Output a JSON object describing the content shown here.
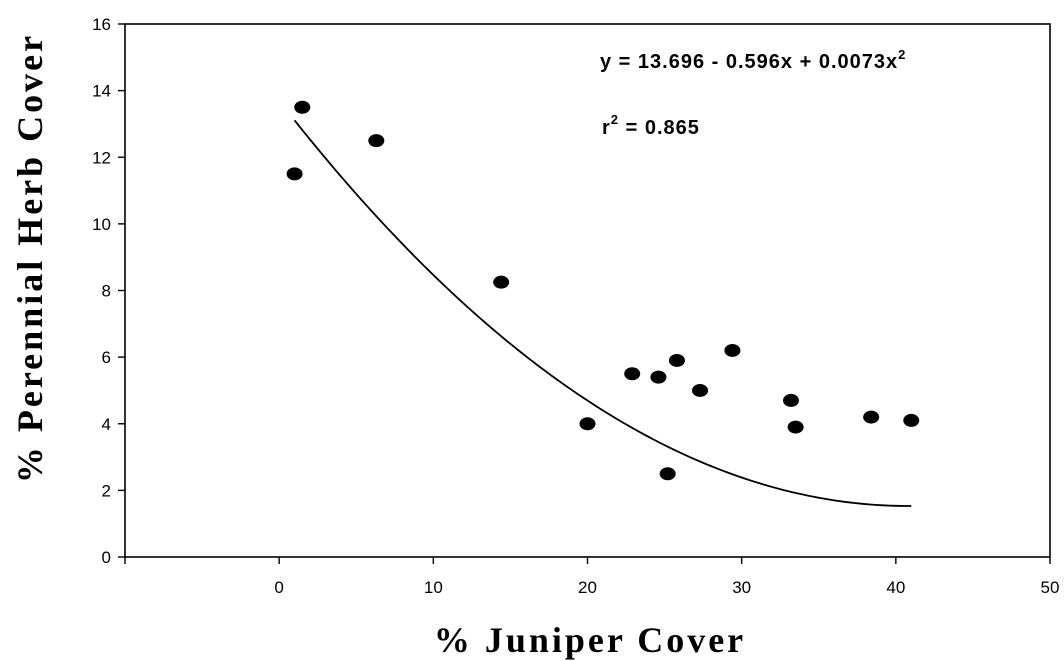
{
  "chart_data": {
    "type": "scatter",
    "xlabel": "% Juniper Cover",
    "ylabel": "% Perennial Herb Cover",
    "xlim": [
      -10,
      50
    ],
    "ylim": [
      0,
      16
    ],
    "xticks": [
      "0",
      "10",
      "20",
      "30",
      "40",
      "50"
    ],
    "yticks": [
      "0",
      "2",
      "4",
      "6",
      "8",
      "10",
      "12",
      "14",
      "16"
    ],
    "grid": false,
    "points": [
      {
        "x": 1.0,
        "y": 11.5
      },
      {
        "x": 1.5,
        "y": 13.5
      },
      {
        "x": 6.3,
        "y": 12.5
      },
      {
        "x": 14.4,
        "y": 8.25
      },
      {
        "x": 20.0,
        "y": 4.0
      },
      {
        "x": 22.9,
        "y": 5.5
      },
      {
        "x": 24.6,
        "y": 5.4
      },
      {
        "x": 25.2,
        "y": 2.5
      },
      {
        "x": 25.8,
        "y": 5.9
      },
      {
        "x": 27.3,
        "y": 5.0
      },
      {
        "x": 29.4,
        "y": 6.2
      },
      {
        "x": 33.2,
        "y": 4.7
      },
      {
        "x": 33.5,
        "y": 3.9
      },
      {
        "x": 38.4,
        "y": 4.2
      },
      {
        "x": 41.0,
        "y": 4.1
      }
    ],
    "fit": {
      "type": "quadratic",
      "coefficients": [
        13.696,
        -0.596,
        0.0073
      ],
      "x_range": [
        1.0,
        41.0
      ]
    },
    "annotations": {
      "equation_main": "y = 13.696 - 0.596x + 0.0073x",
      "equation_sup": "2",
      "r2_main": "r",
      "r2_sup": "2",
      "r2_value": " = 0.865"
    }
  }
}
